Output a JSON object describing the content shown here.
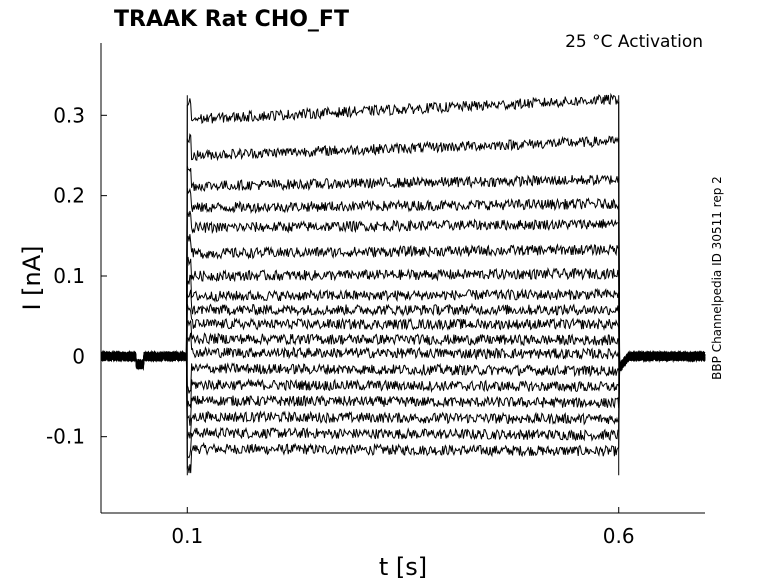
{
  "chart_data": {
    "type": "line",
    "title": "TRAAK  Rat  CHO_FT",
    "annotation": "25 °C  Activation",
    "side_label": "BBP Channelpedia ID 30511 rep 2",
    "xlabel": "t [s]",
    "ylabel": "I [nA]",
    "xlim": [
      0.0,
      0.7
    ],
    "ylim": [
      -0.195,
      0.39
    ],
    "x_ticks": [
      0.1,
      0.6
    ],
    "x_tick_labels": [
      "0.1",
      "0.6"
    ],
    "y_ticks": [
      -0.1,
      0,
      0.1,
      0.2,
      0.3
    ],
    "y_tick_labels": [
      "-0.1",
      "0",
      "0.1",
      "0.2",
      "0.3"
    ],
    "grid": false,
    "legend": "none",
    "pulse": {
      "start": 0.1,
      "end": 0.6,
      "baseline": 0.0
    },
    "series": [
      {
        "values": {
          "start": -0.115,
          "end": -0.118
        }
      },
      {
        "values": {
          "start": -0.095,
          "end": -0.098
        }
      },
      {
        "values": {
          "start": -0.075,
          "end": -0.078
        }
      },
      {
        "values": {
          "start": -0.055,
          "end": -0.058
        }
      },
      {
        "values": {
          "start": -0.035,
          "end": -0.038
        }
      },
      {
        "values": {
          "start": -0.015,
          "end": -0.018
        }
      },
      {
        "values": {
          "start": 0.005,
          "end": 0.003
        }
      },
      {
        "values": {
          "start": 0.022,
          "end": 0.02
        }
      },
      {
        "values": {
          "start": 0.04,
          "end": 0.04
        }
      },
      {
        "values": {
          "start": 0.058,
          "end": 0.058
        }
      },
      {
        "values": {
          "start": 0.075,
          "end": 0.077
        }
      },
      {
        "values": {
          "start": 0.1,
          "end": 0.103
        }
      },
      {
        "values": {
          "start": 0.128,
          "end": 0.133
        }
      },
      {
        "values": {
          "start": 0.16,
          "end": 0.165
        }
      },
      {
        "values": {
          "start": 0.185,
          "end": 0.19
        }
      },
      {
        "values": {
          "start": 0.212,
          "end": 0.22
        }
      },
      {
        "values": {
          "start": 0.25,
          "end": 0.268
        }
      },
      {
        "values": {
          "start": 0.295,
          "end": 0.32
        }
      }
    ]
  }
}
